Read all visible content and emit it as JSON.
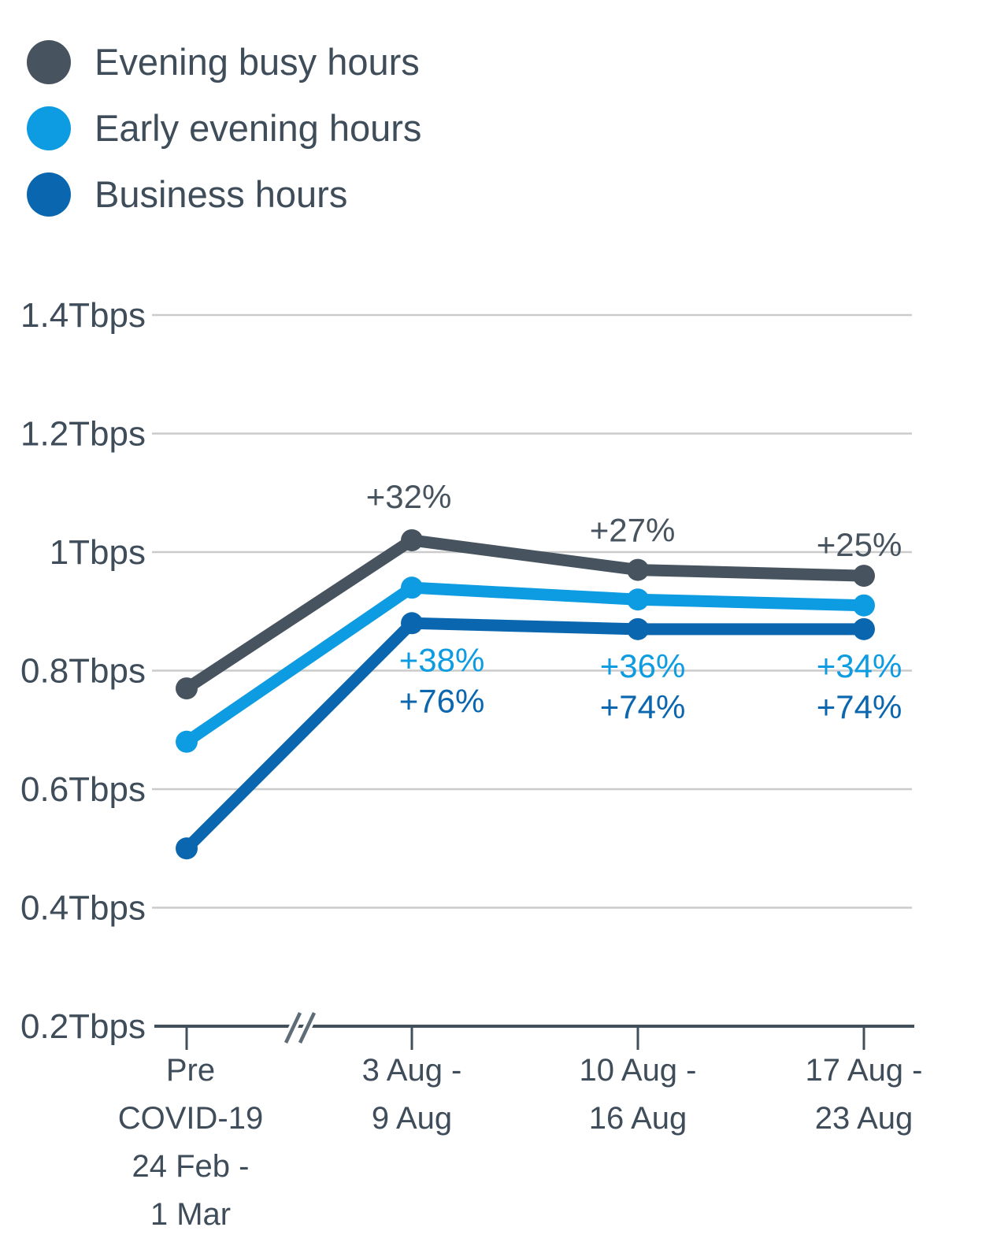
{
  "legend": {
    "items": [
      {
        "label": "Evening busy hours",
        "color": "#47545F"
      },
      {
        "label": "Early evening hours",
        "color": "#0D9CE2"
      },
      {
        "label": "Business hours",
        "color": "#0A67AF"
      }
    ]
  },
  "chart_data": {
    "type": "line",
    "title": "",
    "y_axis": {
      "tick_labels": [
        "1.4Tbps",
        "1.2Tbps",
        "1Tbps",
        "0.8Tbps",
        "0.6Tbps",
        "0.4Tbps",
        "0.2Tbps"
      ],
      "tick_values": [
        1.4,
        1.2,
        1.0,
        0.8,
        0.6,
        0.4,
        0.2
      ],
      "range": [
        0.2,
        1.45
      ],
      "gridlines": true
    },
    "x_axis": {
      "categories": [
        {
          "lines": [
            "Pre",
            "COVID-19",
            "24 Feb -",
            "1 Mar"
          ]
        },
        {
          "lines": [
            "3 Aug -",
            "9 Aug"
          ]
        },
        {
          "lines": [
            "10 Aug -",
            "16 Aug"
          ]
        },
        {
          "lines": [
            "17 Aug -",
            "23 Aug"
          ]
        }
      ],
      "break_marker_between_first_two_categories": true
    },
    "series": [
      {
        "name": "Evening busy hours",
        "color": "#47545F",
        "values": [
          0.77,
          1.02,
          0.97,
          0.96
        ],
        "annotations": [
          null,
          "+32%",
          "+27%",
          "+25%"
        ],
        "annotation_side": "above"
      },
      {
        "name": "Early evening hours",
        "color": "#0D9CE2",
        "values": [
          0.68,
          0.94,
          0.92,
          0.91
        ],
        "annotations": [
          null,
          "+38%",
          "+36%",
          "+34%"
        ],
        "annotation_side": "below-row-1"
      },
      {
        "name": "Business hours",
        "color": "#0A67AF",
        "values": [
          0.5,
          0.88,
          0.87,
          0.87
        ],
        "annotations": [
          null,
          "+76%",
          "+74%",
          "+74%"
        ],
        "annotation_side": "below-row-2"
      }
    ],
    "colors": {
      "gridline": "#CBCBCB",
      "axis": "#42505C",
      "tick_text": "#3F4D5A"
    }
  }
}
